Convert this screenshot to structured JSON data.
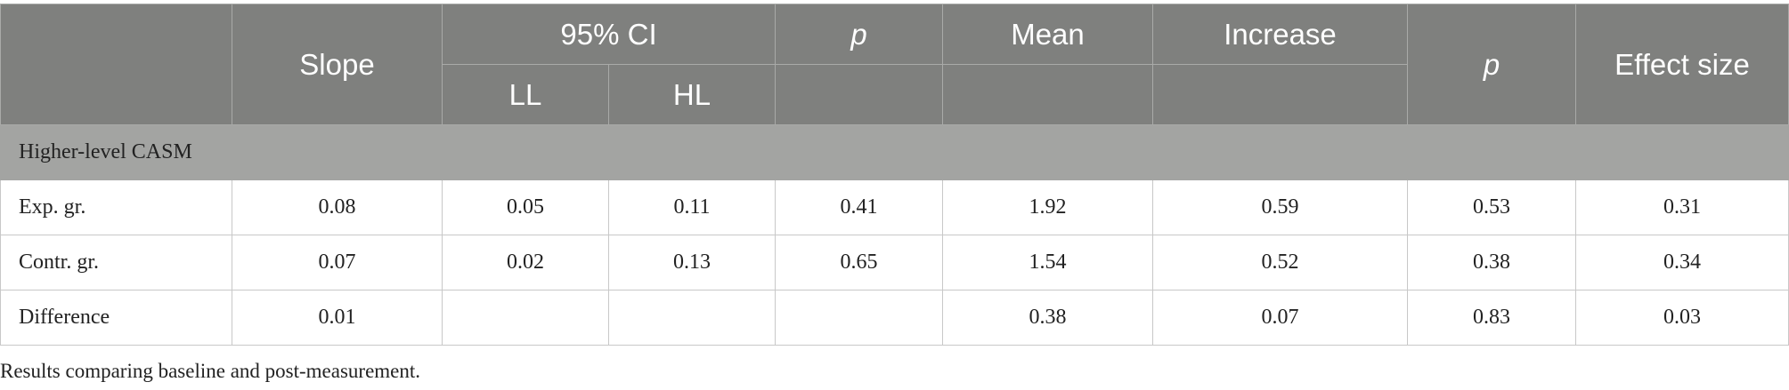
{
  "table": {
    "header": {
      "slope": "Slope",
      "ci": "95% CI",
      "ll": "LL",
      "hl": "HL",
      "p1": "p",
      "mean": "Mean",
      "increase": "Increase",
      "p2": "p",
      "effect": "Effect size"
    },
    "section": "Higher-level CASM",
    "rows": [
      {
        "label": "Exp. gr.",
        "values": [
          0.08,
          0.05,
          0.11,
          0.41,
          1.92,
          0.59,
          0.53,
          0.31
        ]
      },
      {
        "label": "Contr. gr.",
        "values": [
          0.07,
          0.02,
          0.13,
          0.65,
          1.54,
          0.52,
          0.38,
          0.34
        ]
      },
      {
        "label": "Difference",
        "values": [
          0.01,
          null,
          null,
          null,
          0.38,
          0.07,
          0.83,
          0.03
        ]
      }
    ]
  },
  "footnote": "Results comparing baseline and post-measurement."
}
